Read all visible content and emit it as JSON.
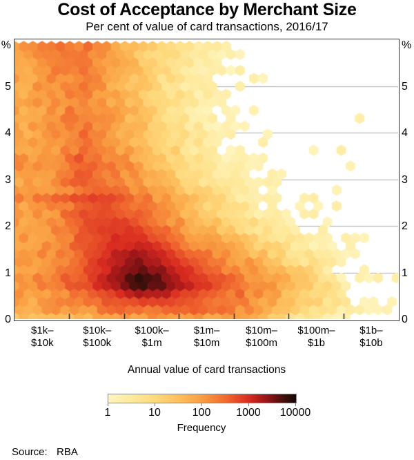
{
  "title": "Cost of Acceptance by Merchant Size",
  "subtitle": "Per cent of value of card transactions, 2016/17",
  "source": {
    "label": "Source:",
    "value": "RBA"
  },
  "chart_data": {
    "type": "heatmap",
    "subtype": "hexbin",
    "title": "Cost of Acceptance by Merchant Size",
    "subtitle": "Per cent of value of card transactions, 2016/17",
    "xlabel": "Annual value of card transactions",
    "y_unit": "%",
    "ylim": [
      0,
      6
    ],
    "y_ticks": [
      0,
      1,
      2,
      3,
      4,
      5
    ],
    "grid": "horizontal",
    "x_categories": [
      [
        "$1k–",
        "$10k"
      ],
      [
        "$10k–",
        "$100k"
      ],
      [
        "$100k–",
        "$1m"
      ],
      [
        "$1m–",
        "$10m"
      ],
      [
        "$10m–",
        "$100m"
      ],
      [
        "$100m–",
        "$1b"
      ],
      [
        "$1b–",
        "$10b"
      ]
    ],
    "colorbar": {
      "label": "Frequency",
      "scale": "log10",
      "ticks": [
        1,
        10,
        100,
        1000,
        10000
      ]
    },
    "colormap_stops": [
      {
        "t": 0.0,
        "color": "#FEF5BE"
      },
      {
        "t": 0.125,
        "color": "#FEE99C"
      },
      {
        "t": 0.25,
        "color": "#FED97D"
      },
      {
        "t": 0.375,
        "color": "#FDBE5C"
      },
      {
        "t": 0.5,
        "color": "#F99D41"
      },
      {
        "t": 0.625,
        "color": "#F1692F"
      },
      {
        "t": 0.75,
        "color": "#D92B20"
      },
      {
        "t": 0.8125,
        "color": "#AC1A1A"
      },
      {
        "t": 0.875,
        "color": "#7C1114"
      },
      {
        "t": 0.9375,
        "color": "#3E100B"
      },
      {
        "t": 1.0,
        "color": "#140805"
      }
    ],
    "peak": {
      "category": "$100k–$1m",
      "cost_per_cent": 0.8,
      "frequency": 10000
    },
    "density_log10_grid": {
      "comment_units": "log10 of bin frequency; u = category axis 0-7, v = per cent 0-6",
      "u_centers": [
        0.25,
        0.75,
        1.25,
        1.75,
        2.25,
        2.75,
        3.25,
        3.75,
        4.25,
        4.75,
        5.25,
        5.75,
        6.25,
        6.75
      ],
      "v_centers": [
        0.25,
        0.75,
        1.25,
        1.75,
        2.25,
        2.75,
        3.25,
        3.75,
        4.25,
        4.75,
        5.25,
        5.75
      ],
      "rows_bottom_to_top": true,
      "values": [
        [
          1.8,
          1.95,
          2.1,
          2.3,
          2.45,
          2.45,
          2.4,
          2.3,
          2.1,
          1.65,
          1.15,
          0.7,
          0.1,
          -0.2
        ],
        [
          2.05,
          2.3,
          2.7,
          3.25,
          3.9,
          3.6,
          3.05,
          2.75,
          2.4,
          1.95,
          1.45,
          0.85,
          -0.2,
          -0.6
        ],
        [
          2.0,
          2.25,
          2.6,
          3.1,
          3.4,
          3.15,
          2.7,
          2.3,
          1.9,
          1.4,
          0.85,
          0.35,
          -0.5,
          -1.2
        ],
        [
          1.95,
          2.2,
          2.55,
          2.95,
          3.0,
          2.6,
          2.1,
          1.65,
          1.2,
          0.75,
          0.3,
          -0.3,
          -0.8,
          -1.5
        ],
        [
          1.95,
          2.15,
          2.7,
          2.75,
          2.55,
          2.1,
          1.6,
          1.1,
          0.65,
          0.25,
          -0.3,
          -0.8,
          -1.3,
          -1.8
        ],
        [
          1.9,
          2.1,
          2.55,
          2.5,
          2.2,
          1.7,
          1.2,
          0.7,
          0.3,
          -0.2,
          -0.7,
          -1.2,
          -1.6,
          -2
        ],
        [
          1.9,
          2.1,
          2.5,
          2.3,
          1.9,
          1.3,
          0.8,
          0.4,
          0.0,
          -0.5,
          -1.0,
          -1.5,
          -1.9,
          -2
        ],
        [
          1.85,
          2.05,
          2.35,
          2.1,
          1.65,
          1.1,
          0.65,
          0.2,
          -0.3,
          -0.9,
          -1.4,
          -1.9,
          -2,
          -2
        ],
        [
          1.85,
          2.1,
          2.3,
          1.95,
          1.5,
          1.0,
          0.55,
          0.1,
          -0.5,
          -1.1,
          -1.6,
          -2,
          -2,
          -2
        ],
        [
          1.85,
          2.15,
          2.3,
          1.9,
          1.45,
          0.9,
          0.45,
          0.05,
          -0.6,
          -1.2,
          -1.7,
          -2,
          -2,
          -2
        ],
        [
          1.9,
          2.2,
          2.35,
          1.9,
          1.4,
          0.85,
          0.45,
          0.0,
          -0.6,
          -1.3,
          -1.8,
          -2,
          -2,
          -2
        ],
        [
          1.9,
          2.3,
          2.4,
          1.95,
          1.45,
          0.9,
          0.5,
          0.15,
          -0.4,
          -1.0,
          -1.6,
          -2,
          -2,
          -2
        ]
      ],
      "row_bands": [
        {
          "v": 2.6,
          "boost": 0.32,
          "u_fade": 4
        },
        {
          "v": 3.35,
          "boost": 0.18,
          "u_fade": 3
        }
      ],
      "bottom_row_dip": 0.4
    }
  }
}
